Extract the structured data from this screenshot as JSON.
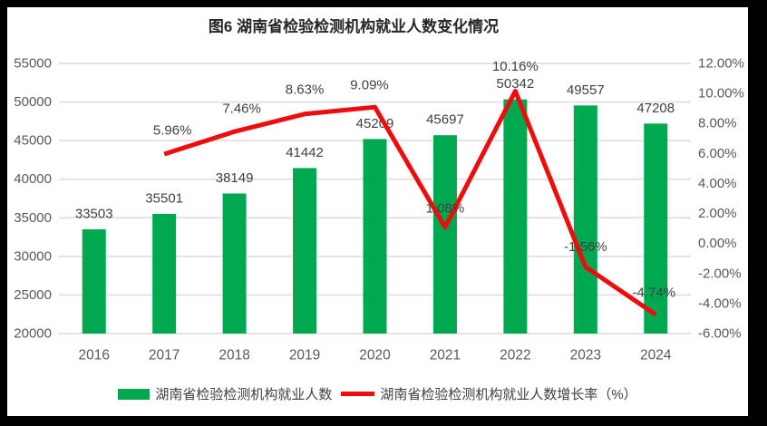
{
  "title": "图6 湖南省检验检测机构就业人数变化情况",
  "legend": [
    {
      "label": "湖南省检验检测机构就业人数",
      "swatch": "bar"
    },
    {
      "label": "湖南省检验检测机构就业人数增长率（%）",
      "swatch": "line"
    }
  ],
  "colors": {
    "bar_green": "#00A84F",
    "line_red": "#EE0C0C",
    "label_text": "#404040",
    "axis_text": "#595959",
    "gridline": "#E3E3E3",
    "frame_border": "#000000",
    "chart_background": "#FFFFFF"
  },
  "chart_data": {
    "type": "bar",
    "subtype": "combo-bar-line",
    "title": "图6 湖南省检验检测机构就业人数变化情况",
    "categories": [
      "2016",
      "2017",
      "2018",
      "2019",
      "2020",
      "2021",
      "2022",
      "2023",
      "2024"
    ],
    "series": [
      {
        "name": "湖南省检验检测机构就业人数",
        "type": "bar",
        "axis": "left",
        "color": "#00A84F",
        "values": [
          33503,
          35501,
          38149,
          41442,
          45209,
          45697,
          50342,
          49557,
          47208
        ],
        "labels": [
          "33503",
          "35501",
          "38149",
          "41442",
          "45209",
          "45697",
          "50342",
          "49557",
          "47208"
        ]
      },
      {
        "name": "湖南省检验检测机构就业人数增长率（%）",
        "type": "line",
        "axis": "right",
        "color": "#EE0C0C",
        "values": [
          null,
          5.96,
          7.46,
          8.63,
          9.09,
          1.08,
          10.16,
          -1.56,
          -4.74
        ],
        "labels": [
          "",
          "5.96%",
          "7.46%",
          "8.63%",
          "9.09%",
          "1.08%",
          "10.16%",
          "-1.56%",
          "-4.74%"
        ]
      }
    ],
    "left_axis": {
      "min": 20000,
      "max": 55000,
      "step": 5000,
      "ticks": [
        "55000",
        "50000",
        "45000",
        "40000",
        "35000",
        "30000",
        "25000",
        "20000"
      ]
    },
    "right_axis": {
      "min": -6,
      "max": 12,
      "step": 2,
      "ticks": [
        "12.00%",
        "10.00%",
        "8.00%",
        "6.00%",
        "4.00%",
        "2.00%",
        "0.00%",
        "-2.00%",
        "-4.00%",
        "-6.00%"
      ]
    },
    "grid": true,
    "legend_position": "bottom",
    "xlabel": "",
    "ylabel": ""
  }
}
